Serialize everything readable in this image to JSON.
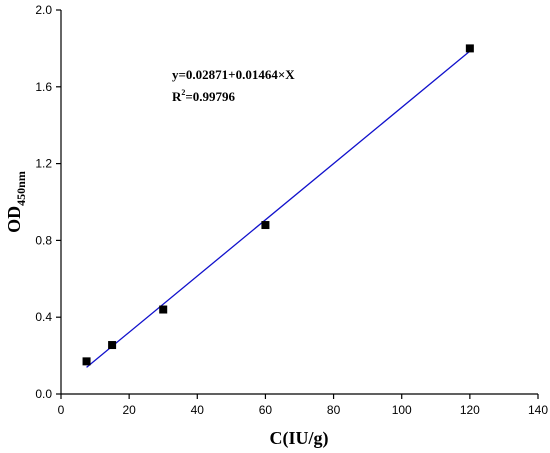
{
  "chart_data": {
    "type": "scatter",
    "xlabel": "C(IU/g)",
    "ylabel": "OD",
    "ylabel_subscript": "450nm",
    "xlim": [
      0,
      140
    ],
    "ylim": [
      0,
      2.0
    ],
    "x_ticks": [
      "0",
      "20",
      "40",
      "60",
      "80",
      "100",
      "120",
      "140"
    ],
    "y_ticks": [
      "0.0",
      "0.4",
      "0.8",
      "1.2",
      "1.6",
      "2.0"
    ],
    "grid": false,
    "series": [
      {
        "x": [
          7.5,
          15,
          30,
          60,
          120
        ],
        "y": [
          0.17,
          0.255,
          0.44,
          0.88,
          1.8
        ],
        "marker": "square",
        "color": "#000000"
      }
    ],
    "fit": {
      "intercept": 0.02871,
      "slope": 0.01464,
      "x_range": [
        7.5,
        120
      ],
      "color": "#1111cc"
    },
    "annotations": {
      "equation": "y=0.02871+0.01464×X",
      "r2_label": "R",
      "r2_sup": "2",
      "r2_value": "=0.99796"
    }
  }
}
